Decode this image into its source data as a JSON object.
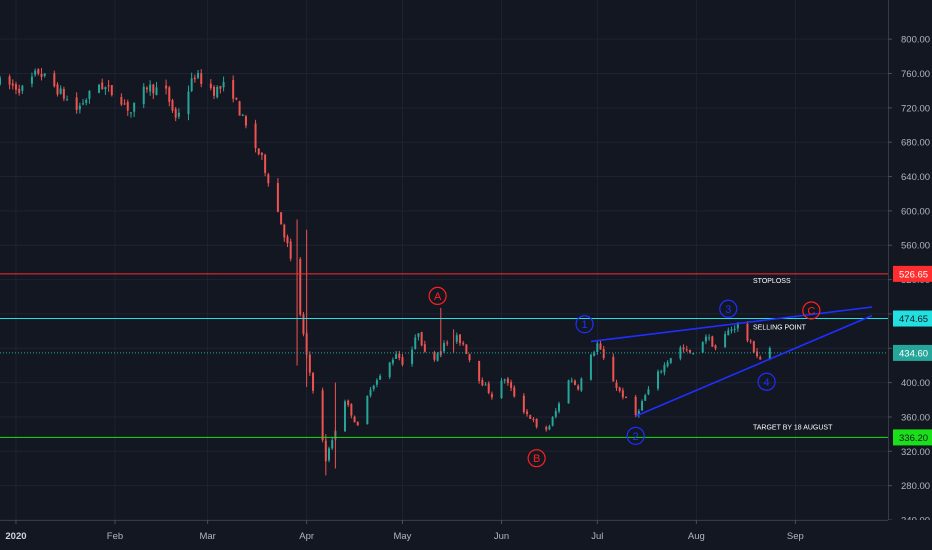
{
  "chart_data": {
    "type": "candlestick",
    "x_range": [
      "2019-12-27",
      "2020-09-30"
    ],
    "ylim": [
      240,
      820
    ],
    "y_ticks": [
      "800.00",
      "760.00",
      "720.00",
      "680.00",
      "640.00",
      "600.00",
      "560.00",
      "520.00",
      "480.00",
      "440.00",
      "400.00",
      "360.00",
      "320.00",
      "280.00",
      "240.00"
    ],
    "x_ticks": [
      {
        "label": "2020",
        "date": "2020-01-01",
        "bold": true
      },
      {
        "label": "Feb",
        "date": "2020-02-01",
        "bold": false
      },
      {
        "label": "Mar",
        "date": "2020-03-01",
        "bold": false
      },
      {
        "label": "Apr",
        "date": "2020-04-01",
        "bold": false
      },
      {
        "label": "May",
        "date": "2020-05-01",
        "bold": false
      },
      {
        "label": "Jun",
        "date": "2020-06-01",
        "bold": false
      },
      {
        "label": "Jul",
        "date": "2020-07-01",
        "bold": false
      },
      {
        "label": "Aug",
        "date": "2020-08-01",
        "bold": false
      },
      {
        "label": "Sep",
        "date": "2020-09-01",
        "bold": false
      }
    ],
    "price_path": [
      [
        "2019-12-27",
        750
      ],
      [
        "2020-01-03",
        742
      ],
      [
        "2020-01-08",
        762
      ],
      [
        "2020-01-13",
        745
      ],
      [
        "2020-01-20",
        718
      ],
      [
        "2020-01-27",
        748
      ],
      [
        "2020-02-03",
        730
      ],
      [
        "2020-02-06",
        715
      ],
      [
        "2020-02-11",
        745
      ],
      [
        "2020-02-17",
        738
      ],
      [
        "2020-02-20",
        708
      ],
      [
        "2020-02-26",
        758
      ],
      [
        "2020-03-03",
        740
      ],
      [
        "2020-03-08",
        748
      ],
      [
        "2020-03-10",
        725
      ],
      [
        "2020-03-14",
        688
      ],
      [
        "2020-03-18",
        660
      ],
      [
        "2020-03-21",
        625
      ],
      [
        "2020-03-26",
        560
      ],
      [
        "2020-03-29",
        505
      ],
      [
        "2020-04-01",
        430
      ],
      [
        "2020-04-04",
        375
      ],
      [
        "2020-04-07",
        310
      ],
      [
        "2020-04-10",
        345
      ],
      [
        "2020-04-13",
        380
      ],
      [
        "2020-04-17",
        348
      ],
      [
        "2020-04-21",
        395
      ],
      [
        "2020-04-25",
        410
      ],
      [
        "2020-04-29",
        435
      ],
      [
        "2020-05-02",
        418
      ],
      [
        "2020-05-06",
        460
      ],
      [
        "2020-05-09",
        420
      ],
      [
        "2020-05-13",
        440
      ],
      [
        "2020-05-17",
        455
      ],
      [
        "2020-05-20",
        445
      ],
      [
        "2020-05-24",
        410
      ],
      [
        "2020-05-29",
        385
      ],
      [
        "2020-06-02",
        405
      ],
      [
        "2020-06-07",
        372
      ],
      [
        "2020-06-11",
        355
      ],
      [
        "2020-06-13",
        338
      ],
      [
        "2020-06-16",
        350
      ],
      [
        "2020-06-19",
        375
      ],
      [
        "2020-06-22",
        405
      ],
      [
        "2020-06-25",
        395
      ],
      [
        "2020-06-29",
        430
      ],
      [
        "2020-07-01",
        445
      ],
      [
        "2020-07-04",
        418
      ],
      [
        "2020-07-07",
        395
      ],
      [
        "2020-07-10",
        380
      ],
      [
        "2020-07-13",
        362
      ],
      [
        "2020-07-16",
        385
      ],
      [
        "2020-07-20",
        410
      ],
      [
        "2020-07-24",
        430
      ],
      [
        "2020-07-27",
        440
      ],
      [
        "2020-07-31",
        432
      ],
      [
        "2020-08-04",
        455
      ],
      [
        "2020-08-07",
        440
      ],
      [
        "2020-08-11",
        460
      ],
      [
        "2020-08-14",
        468
      ],
      [
        "2020-08-17",
        450
      ],
      [
        "2020-08-20",
        432
      ],
      [
        "2020-08-22",
        422
      ],
      [
        "2020-08-24",
        438
      ]
    ],
    "wicks": [
      [
        "2020-03-29",
        590,
        420
      ],
      [
        "2020-04-01",
        578,
        395
      ],
      [
        "2020-04-07",
        340,
        292
      ],
      [
        "2020-04-10",
        400,
        300
      ],
      [
        "2020-05-13",
        487,
        430
      ],
      [
        "2020-05-17",
        462,
        435
      ]
    ],
    "levels": [
      {
        "name": "stoploss",
        "value": 526.65,
        "label": "526.65",
        "color": "#ff2d2d",
        "style": "solid",
        "annotation": "STOPLOSS"
      },
      {
        "name": "selling-point",
        "value": 474.65,
        "label": "474.65",
        "color": "#22e0e0",
        "style": "solid",
        "annotation": "SELLING POINT"
      },
      {
        "name": "last-price",
        "value": 434.6,
        "label": "434.60",
        "color": "#26a69a",
        "style": "dotted",
        "annotation": ""
      },
      {
        "name": "target",
        "value": 336.2,
        "label": "336.20",
        "color": "#19e019",
        "style": "solid",
        "annotation": "TARGET BY 18 AUGUST"
      }
    ],
    "trendlines": [
      {
        "from": [
          "2020-06-29",
          448
        ],
        "to": [
          "2020-09-25",
          488
        ],
        "color": "#1f2fff"
      },
      {
        "from": [
          "2020-07-13",
          361
        ],
        "to": [
          "2020-09-25",
          478
        ],
        "color": "#1f2fff"
      }
    ],
    "wave_labels": [
      {
        "text": "A",
        "date": "2020-05-12",
        "price": 501,
        "color": "#ff2020"
      },
      {
        "text": "B",
        "date": "2020-06-12",
        "price": 312,
        "color": "#ff2020"
      },
      {
        "text": "C",
        "date": "2020-09-06",
        "price": 484,
        "color": "#ff2020"
      },
      {
        "text": "1",
        "date": "2020-06-27",
        "price": 468,
        "color": "#1f2fff"
      },
      {
        "text": "2",
        "date": "2020-07-13",
        "price": 338,
        "color": "#1f2fff"
      },
      {
        "text": "3",
        "date": "2020-08-11",
        "price": 486,
        "color": "#1f2fff"
      },
      {
        "text": "4",
        "date": "2020-08-23",
        "price": 401,
        "color": "#1f2fff"
      }
    ],
    "candle_colors": {
      "up": "#26a69a",
      "down": "#ef5350"
    }
  }
}
